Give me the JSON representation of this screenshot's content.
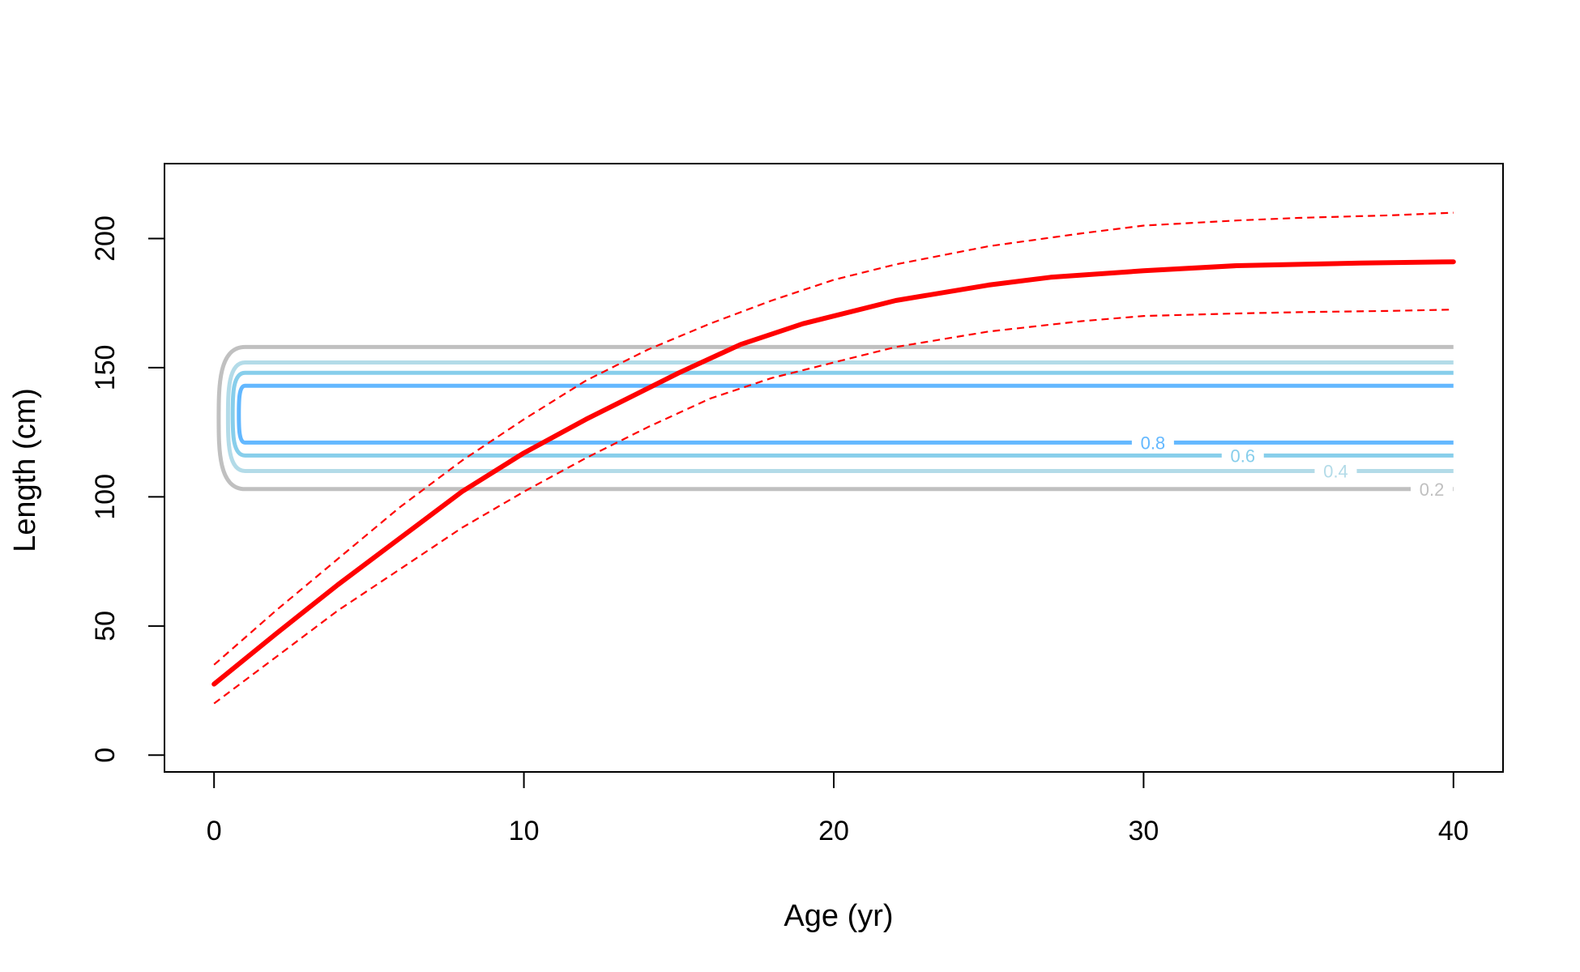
{
  "chart_data": {
    "type": "line",
    "title": "",
    "xlabel": "Age (yr)",
    "ylabel": "Length (cm)",
    "xlim": [
      -1.6,
      41.6
    ],
    "ylim": [
      -6.5,
      229
    ],
    "x_ticks": [
      0,
      10,
      20,
      30,
      40
    ],
    "y_ticks": [
      0,
      50,
      100,
      150,
      200
    ],
    "grid": false,
    "legend": "none",
    "series": [
      {
        "style": "solid",
        "color": "#ff0000",
        "x": [
          0,
          2,
          4,
          6,
          7,
          8,
          10,
          12,
          14,
          15,
          17,
          19,
          22,
          25,
          27,
          30,
          33,
          35,
          37,
          40
        ],
        "y": [
          27.5,
          47,
          66,
          84,
          93,
          102,
          117,
          130,
          142,
          148,
          159,
          167,
          176,
          182,
          185,
          187.5,
          189.5,
          190,
          190.5,
          191
        ]
      },
      {
        "style": "dashed",
        "color": "#ff0000",
        "x": [
          0,
          2,
          4,
          6,
          8,
          10,
          12,
          14,
          16,
          18,
          20,
          22,
          25,
          28,
          30,
          33,
          35,
          38,
          40
        ],
        "y": [
          35,
          56,
          76,
          96,
          114,
          130,
          145,
          157,
          167,
          176,
          184,
          190,
          197,
          202,
          205,
          207,
          208,
          209,
          210
        ]
      },
      {
        "style": "dashed",
        "color": "#ff0000",
        "x": [
          0,
          2,
          4,
          6,
          8,
          10,
          12,
          14,
          16,
          18,
          20,
          22,
          25,
          28,
          30,
          33,
          35,
          38,
          40
        ],
        "y": [
          20,
          38,
          56,
          72,
          88,
          102,
          115,
          127,
          138,
          146,
          152,
          158,
          164,
          168,
          170,
          171,
          171.5,
          172,
          172.5
        ]
      }
    ],
    "contours": [
      {
        "level": 0.2,
        "label": "0.2",
        "color": "#c0c0c0",
        "y_low": 103,
        "y_high": 158,
        "x_start": 1,
        "x_end": 40,
        "x_nose": 0.15,
        "label_x": 39.3
      },
      {
        "level": 0.4,
        "label": "0.4",
        "color": "#b3dbe8",
        "y_low": 110,
        "y_high": 152,
        "x_start": 1,
        "x_end": 40,
        "x_nose": 0.45,
        "label_x": 36.2
      },
      {
        "level": 0.6,
        "label": "0.6",
        "color": "#87ceeb",
        "y_low": 116,
        "y_high": 148,
        "x_start": 1,
        "x_end": 40,
        "x_nose": 0.6,
        "label_x": 33.2
      },
      {
        "level": 0.8,
        "label": "0.8",
        "color": "#63b8ff",
        "y_low": 121,
        "y_high": 143,
        "x_start": 1,
        "x_end": 40,
        "x_nose": 0.8,
        "label_x": 30.3
      }
    ]
  }
}
